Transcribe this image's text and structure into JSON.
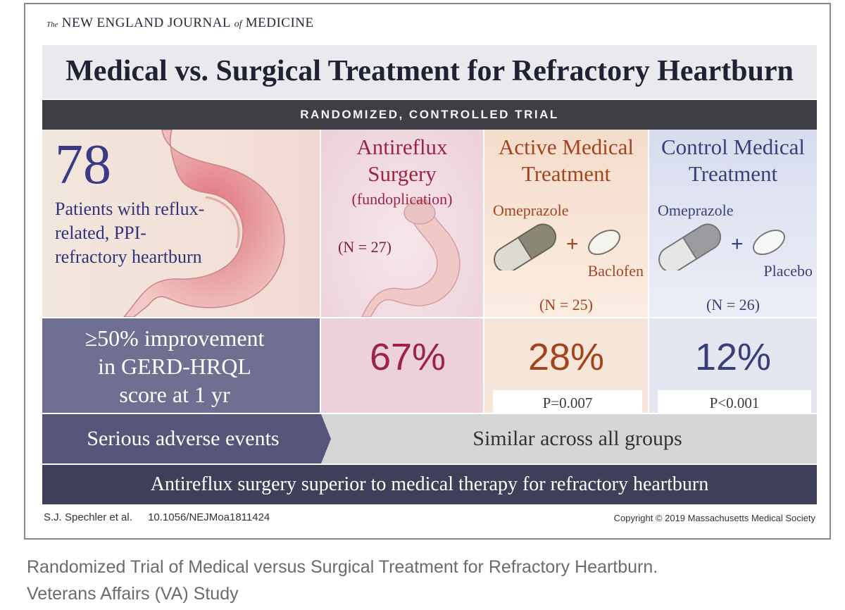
{
  "journal": {
    "prefix": "The",
    "name_a": "NEW ENGLAND JOURNAL",
    "of": "of",
    "name_b": "MEDICINE"
  },
  "title": "Medical vs. Surgical Treatment for Refractory Heartburn",
  "design_label": "RANDOMIZED, CONTROLLED TRIAL",
  "patients": {
    "count": "78",
    "description": "Patients with reflux-related, PPI-refractory heartburn"
  },
  "arms": {
    "surgery": {
      "title_line1": "Antireflux",
      "title_line2": "Surgery",
      "subtitle": "(fundoplication)",
      "n": "(N = 27)",
      "improvement": "67%"
    },
    "active": {
      "title_line1": "Active Medical",
      "title_line2": "Treatment",
      "drug1": "Omeprazole",
      "plus": "+",
      "drug2": "Baclofen",
      "n": "(N = 25)",
      "improvement": "28%",
      "p_value": "P=0.007"
    },
    "control": {
      "title_line1": "Control Medical",
      "title_line2": "Treatment",
      "drug1": "Omeprazole",
      "plus": "+",
      "drug2": "Placebo",
      "n": "(N = 26)",
      "improvement": "12%",
      "p_value": "P<0.001"
    }
  },
  "outcome_label": {
    "line1": "≥50% improvement",
    "line2": "in GERD-HRQL",
    "line3": "score at 1 yr"
  },
  "adverse": {
    "label": "Serious adverse events",
    "value": "Similar across all groups"
  },
  "conclusion": "Antireflux surgery superior to medical therapy for refractory heartburn",
  "citation": {
    "authors": "S.J. Spechler et al.",
    "doi": "10.1056/NEJMoa1811424"
  },
  "copyright": "Copyright © 2019 Massachusetts Medical Society",
  "caption": {
    "line1": "Randomized Trial of Medical versus Surgical Treatment for Refractory Heartburn.",
    "line2": "Veterans Affairs (VA) Study"
  },
  "colors": {
    "surgery": "#9b2448",
    "active": "#a2451f",
    "control": "#3a3f7a",
    "dark_bar": "#3e3f44",
    "conclusion_bar": "#3e3f58"
  }
}
